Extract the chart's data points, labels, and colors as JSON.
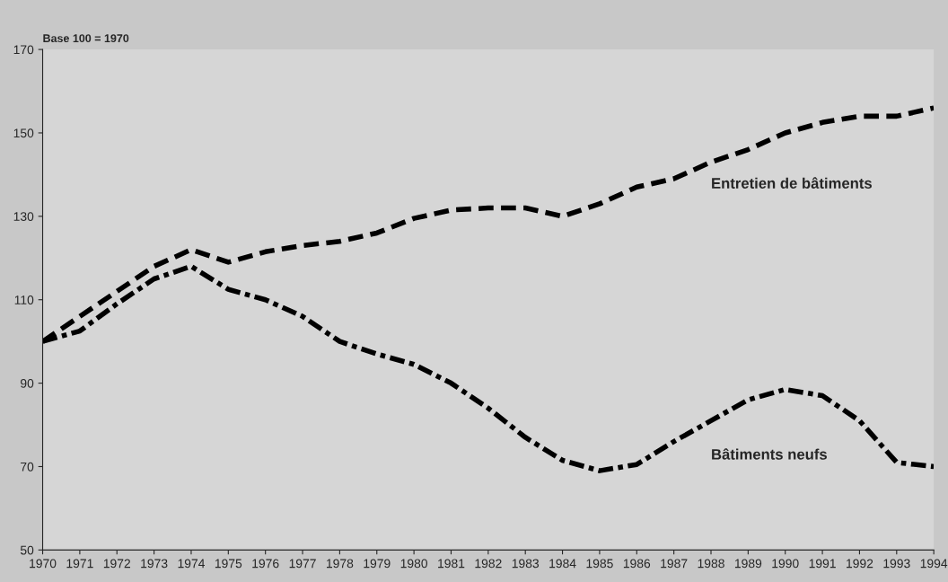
{
  "chart_data": {
    "type": "line",
    "annotations": [
      "Base 100 = 1970"
    ],
    "x": [
      1970,
      1971,
      1972,
      1973,
      1974,
      1975,
      1976,
      1977,
      1978,
      1979,
      1980,
      1981,
      1982,
      1983,
      1984,
      1985,
      1986,
      1987,
      1988,
      1989,
      1990,
      1991,
      1992,
      1993,
      1994
    ],
    "series": [
      {
        "name": "Entretien de bâtiments",
        "color": "#000000",
        "line_style": "dashed",
        "values": [
          100,
          106,
          112,
          118,
          122,
          119,
          121.5,
          123,
          124,
          126,
          129.5,
          131.5,
          132,
          132,
          130,
          133,
          137,
          139,
          143,
          146,
          150,
          152.5,
          154,
          154,
          156
        ]
      },
      {
        "name": "Bâtiments neufs",
        "color": "#000000",
        "line_style": "dashed",
        "values": [
          100,
          102.5,
          109,
          115,
          118,
          112.5,
          110,
          106,
          100,
          97,
          94.5,
          90,
          84,
          77,
          71.5,
          69,
          70.5,
          76,
          81,
          86,
          88.5,
          87,
          81,
          71,
          70
        ]
      }
    ],
    "xlim": [
      1970,
      1994
    ],
    "xticks": [
      1970,
      1971,
      1972,
      1973,
      1974,
      1975,
      1976,
      1977,
      1978,
      1979,
      1980,
      1981,
      1982,
      1983,
      1984,
      1985,
      1986,
      1987,
      1988,
      1989,
      1990,
      1991,
      1992,
      1993,
      1994
    ],
    "ylim": [
      50,
      170
    ],
    "yticks": [
      50,
      70,
      90,
      110,
      130,
      150,
      170
    ],
    "grid": false,
    "legend": false,
    "marker": "none"
  }
}
